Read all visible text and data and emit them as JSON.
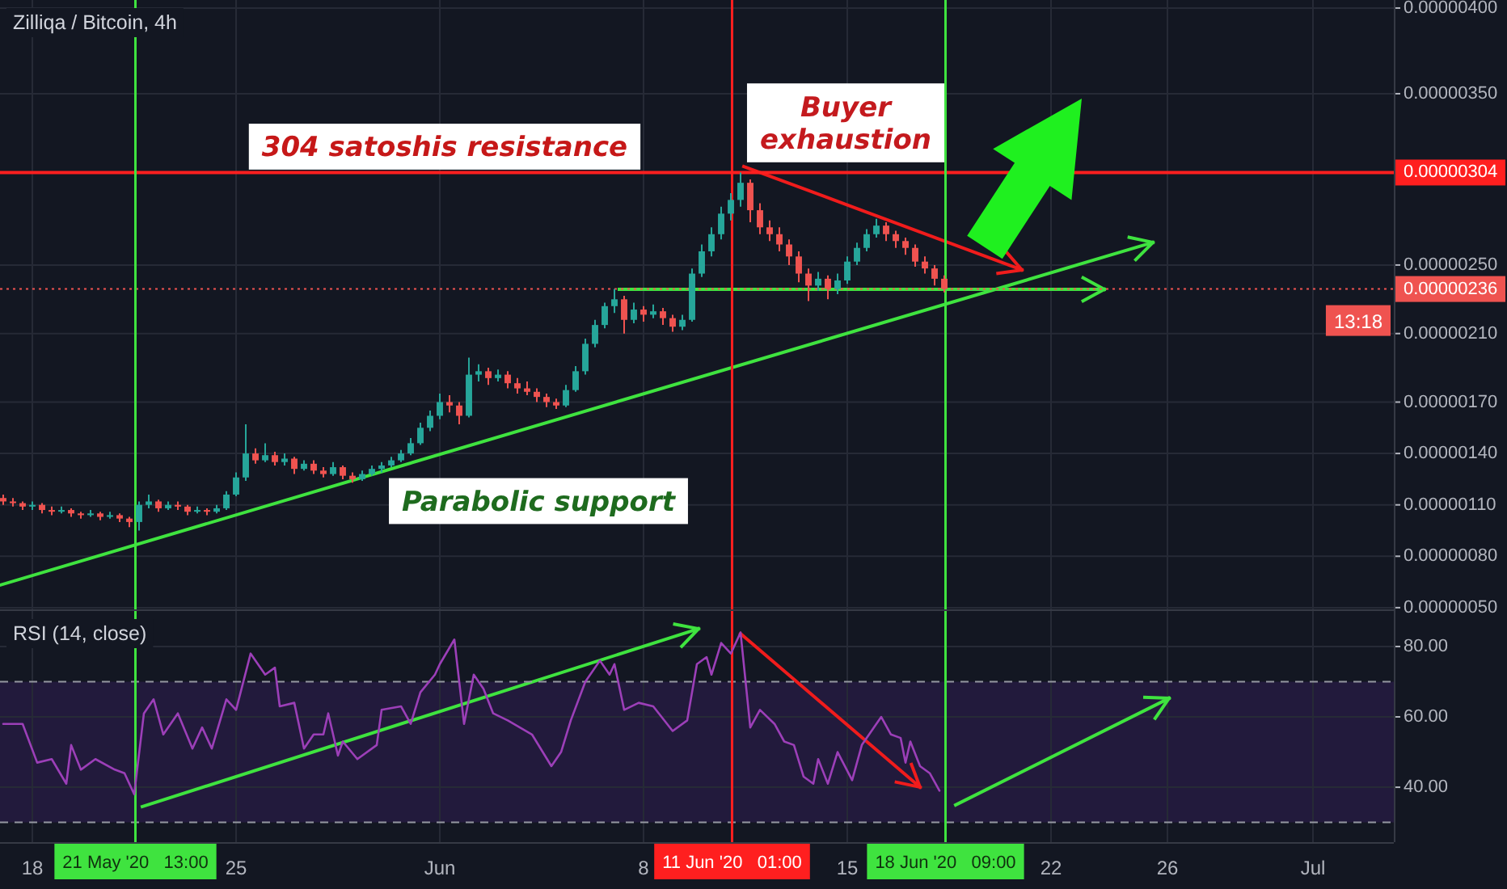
{
  "chart_data": [
    {
      "type": "candlestick",
      "title": "Zilliqa / Bitcoin, 4h",
      "x": [
        "2020-05-17T00:00",
        "2020-05-17T08:00",
        "2020-05-17T16:00",
        "2020-05-18T00:00",
        "2020-05-18T08:00",
        "2020-05-18T16:00",
        "2020-05-19T00:00",
        "2020-05-19T08:00",
        "2020-05-19T16:00",
        "2020-05-20T00:00",
        "2020-05-20T08:00",
        "2020-05-20T16:00",
        "2020-05-21T00:00",
        "2020-05-21T08:00",
        "2020-05-21T16:00",
        "2020-05-22T00:00",
        "2020-05-22T08:00",
        "2020-05-22T16:00",
        "2020-05-23T00:00",
        "2020-05-23T08:00",
        "2020-05-23T16:00",
        "2020-05-24T00:00",
        "2020-05-24T08:00",
        "2020-05-24T16:00",
        "2020-05-25T00:00",
        "2020-05-25T08:00",
        "2020-05-25T16:00",
        "2020-05-26T00:00",
        "2020-05-26T08:00",
        "2020-05-26T16:00",
        "2020-05-27T00:00",
        "2020-05-27T08:00",
        "2020-05-27T16:00",
        "2020-05-28T00:00",
        "2020-05-28T08:00",
        "2020-05-28T16:00",
        "2020-05-29T00:00",
        "2020-05-29T08:00",
        "2020-05-29T16:00",
        "2020-05-30T00:00",
        "2020-05-30T08:00",
        "2020-05-30T16:00",
        "2020-05-31T00:00",
        "2020-05-31T08:00",
        "2020-05-31T16:00",
        "2020-06-01T00:00",
        "2020-06-01T08:00",
        "2020-06-01T16:00",
        "2020-06-02T00:00",
        "2020-06-02T08:00",
        "2020-06-02T16:00",
        "2020-06-03T00:00",
        "2020-06-03T08:00",
        "2020-06-03T16:00",
        "2020-06-04T00:00",
        "2020-06-04T08:00",
        "2020-06-04T16:00",
        "2020-06-05T00:00",
        "2020-06-05T08:00",
        "2020-06-05T16:00",
        "2020-06-06T00:00",
        "2020-06-06T08:00",
        "2020-06-06T16:00",
        "2020-06-07T00:00",
        "2020-06-07T08:00",
        "2020-06-07T16:00",
        "2020-06-08T00:00",
        "2020-06-08T08:00",
        "2020-06-08T16:00",
        "2020-06-09T00:00",
        "2020-06-09T08:00",
        "2020-06-09T16:00",
        "2020-06-10T00:00",
        "2020-06-10T08:00",
        "2020-06-10T16:00",
        "2020-06-11T00:00",
        "2020-06-11T08:00",
        "2020-06-11T16:00",
        "2020-06-12T00:00",
        "2020-06-12T08:00",
        "2020-06-12T16:00",
        "2020-06-13T00:00",
        "2020-06-13T08:00",
        "2020-06-13T16:00",
        "2020-06-14T00:00",
        "2020-06-14T08:00",
        "2020-06-14T16:00",
        "2020-06-15T00:00",
        "2020-06-15T08:00",
        "2020-06-15T16:00",
        "2020-06-16T00:00",
        "2020-06-16T08:00",
        "2020-06-16T16:00",
        "2020-06-17T00:00",
        "2020-06-17T08:00",
        "2020-06-17T16:00",
        "2020-06-18T00:00",
        "2020-06-18T08:00"
      ],
      "ohlc": [
        [
          1.14e-06,
          1.16e-06,
          1.1e-06,
          1.12e-06
        ],
        [
          1.12e-06,
          1.14e-06,
          1.09e-06,
          1.11e-06
        ],
        [
          1.11e-06,
          1.12e-06,
          1.07e-06,
          1.09e-06
        ],
        [
          1.09e-06,
          1.12e-06,
          1.07e-06,
          1.1e-06
        ],
        [
          1.1e-06,
          1.11e-06,
          1.05e-06,
          1.07e-06
        ],
        [
          1.07e-06,
          1.09e-06,
          1.04e-06,
          1.06e-06
        ],
        [
          1.06e-06,
          1.09e-06,
          1.05e-06,
          1.07e-06
        ],
        [
          1.07e-06,
          1.08e-06,
          1.03e-06,
          1.05e-06
        ],
        [
          1.05e-06,
          1.06e-06,
          1.02e-06,
          1.04e-06
        ],
        [
          1.04e-06,
          1.07e-06,
          1.03e-06,
          1.05e-06
        ],
        [
          1.05e-06,
          1.06e-06,
          1.01e-06,
          1.03e-06
        ],
        [
          1.03e-06,
          1.06e-06,
          1.02e-06,
          1.04e-06
        ],
        [
          1.04e-06,
          1.05e-06,
          1e-06,
          1.02e-06
        ],
        [
          1.02e-06,
          1.03e-06,
          9.7e-07,
          1e-06
        ],
        [
          1e-06,
          1.12e-06,
          9.5e-07,
          1.1e-06
        ],
        [
          1.1e-06,
          1.16e-06,
          1.08e-06,
          1.12e-06
        ],
        [
          1.12e-06,
          1.13e-06,
          1.06e-06,
          1.08e-06
        ],
        [
          1.08e-06,
          1.12e-06,
          1.07e-06,
          1.1e-06
        ],
        [
          1.1e-06,
          1.12e-06,
          1.07e-06,
          1.09e-06
        ],
        [
          1.09e-06,
          1.1e-06,
          1.04e-06,
          1.06e-06
        ],
        [
          1.06e-06,
          1.09e-06,
          1.05e-06,
          1.07e-06
        ],
        [
          1.07e-06,
          1.08e-06,
          1.04e-06,
          1.06e-06
        ],
        [
          1.06e-06,
          1.1e-06,
          1.05e-06,
          1.08e-06
        ],
        [
          1.08e-06,
          1.18e-06,
          1.07e-06,
          1.16e-06
        ],
        [
          1.16e-06,
          1.29e-06,
          1.15e-06,
          1.26e-06
        ],
        [
          1.26e-06,
          1.57e-06,
          1.24e-06,
          1.4e-06
        ],
        [
          1.4e-06,
          1.43e-06,
          1.34e-06,
          1.36e-06
        ],
        [
          1.36e-06,
          1.46e-06,
          1.35e-06,
          1.39e-06
        ],
        [
          1.39e-06,
          1.41e-06,
          1.33e-06,
          1.35e-06
        ],
        [
          1.35e-06,
          1.4e-06,
          1.33e-06,
          1.37e-06
        ],
        [
          1.37e-06,
          1.38e-06,
          1.28e-06,
          1.31e-06
        ],
        [
          1.31e-06,
          1.36e-06,
          1.3e-06,
          1.34e-06
        ],
        [
          1.34e-06,
          1.36e-06,
          1.28e-06,
          1.3e-06
        ],
        [
          1.3e-06,
          1.32e-06,
          1.26e-06,
          1.28e-06
        ],
        [
          1.28e-06,
          1.35e-06,
          1.27e-06,
          1.32e-06
        ],
        [
          1.32e-06,
          1.33e-06,
          1.25e-06,
          1.27e-06
        ],
        [
          1.27e-06,
          1.29e-06,
          1.23e-06,
          1.25e-06
        ],
        [
          1.25e-06,
          1.3e-06,
          1.24e-06,
          1.28e-06
        ],
        [
          1.28e-06,
          1.33e-06,
          1.27e-06,
          1.31e-06
        ],
        [
          1.31e-06,
          1.35e-06,
          1.29e-06,
          1.33e-06
        ],
        [
          1.33e-06,
          1.38e-06,
          1.32e-06,
          1.36e-06
        ],
        [
          1.36e-06,
          1.42e-06,
          1.35e-06,
          1.4e-06
        ],
        [
          1.4e-06,
          1.49e-06,
          1.39e-06,
          1.46e-06
        ],
        [
          1.46e-06,
          1.58e-06,
          1.45e-06,
          1.55e-06
        ],
        [
          1.55e-06,
          1.65e-06,
          1.53e-06,
          1.62e-06
        ],
        [
          1.62e-06,
          1.75e-06,
          1.6e-06,
          1.7e-06
        ],
        [
          1.7e-06,
          1.74e-06,
          1.64e-06,
          1.68e-06
        ],
        [
          1.68e-06,
          1.7e-06,
          1.57e-06,
          1.62e-06
        ],
        [
          1.62e-06,
          1.96e-06,
          1.61e-06,
          1.86e-06
        ],
        [
          1.86e-06,
          1.92e-06,
          1.82e-06,
          1.88e-06
        ],
        [
          1.88e-06,
          1.9e-06,
          1.8e-06,
          1.84e-06
        ],
        [
          1.84e-06,
          1.89e-06,
          1.82e-06,
          1.86e-06
        ],
        [
          1.86e-06,
          1.88e-06,
          1.78e-06,
          1.81e-06
        ],
        [
          1.81e-06,
          1.84e-06,
          1.75e-06,
          1.78e-06
        ],
        [
          1.78e-06,
          1.82e-06,
          1.74e-06,
          1.76e-06
        ],
        [
          1.76e-06,
          1.78e-06,
          1.7e-06,
          1.73e-06
        ],
        [
          1.73e-06,
          1.75e-06,
          1.67e-06,
          1.7e-06
        ],
        [
          1.7e-06,
          1.72e-06,
          1.66e-06,
          1.68e-06
        ],
        [
          1.68e-06,
          1.8e-06,
          1.67e-06,
          1.77e-06
        ],
        [
          1.77e-06,
          1.91e-06,
          1.76e-06,
          1.88e-06
        ],
        [
          1.88e-06,
          2.07e-06,
          1.86e-06,
          2.04e-06
        ],
        [
          2.04e-06,
          2.18e-06,
          2.02e-06,
          2.15e-06
        ],
        [
          2.15e-06,
          2.28e-06,
          2.13e-06,
          2.26e-06
        ],
        [
          2.26e-06,
          2.36e-06,
          2.22e-06,
          2.3e-06
        ],
        [
          2.3e-06,
          2.32e-06,
          2.1e-06,
          2.18e-06
        ],
        [
          2.18e-06,
          2.28e-06,
          2.16e-06,
          2.24e-06
        ],
        [
          2.24e-06,
          2.26e-06,
          2.17e-06,
          2.21e-06
        ],
        [
          2.21e-06,
          2.27e-06,
          2.19e-06,
          2.23e-06
        ],
        [
          2.23e-06,
          2.25e-06,
          2.15e-06,
          2.19e-06
        ],
        [
          2.19e-06,
          2.21e-06,
          2.11e-06,
          2.14e-06
        ],
        [
          2.14e-06,
          2.21e-06,
          2.12e-06,
          2.18e-06
        ],
        [
          2.18e-06,
          2.48e-06,
          2.17e-06,
          2.45e-06
        ],
        [
          2.45e-06,
          2.62e-06,
          2.43e-06,
          2.58e-06
        ],
        [
          2.58e-06,
          2.72e-06,
          2.55e-06,
          2.68e-06
        ],
        [
          2.68e-06,
          2.84e-06,
          2.65e-06,
          2.8e-06
        ],
        [
          2.8e-06,
          2.92e-06,
          2.76e-06,
          2.88e-06
        ],
        [
          2.88e-06,
          3.04e-06,
          2.84e-06,
          2.98e-06
        ],
        [
          2.98e-06,
          3e-06,
          2.75e-06,
          2.82e-06
        ],
        [
          2.82e-06,
          2.86e-06,
          2.68e-06,
          2.72e-06
        ],
        [
          2.72e-06,
          2.76e-06,
          2.64e-06,
          2.68e-06
        ],
        [
          2.68e-06,
          2.72e-06,
          2.58e-06,
          2.62e-06
        ],
        [
          2.62e-06,
          2.65e-06,
          2.5e-06,
          2.55e-06
        ],
        [
          2.55e-06,
          2.58e-06,
          2.4e-06,
          2.45e-06
        ],
        [
          2.45e-06,
          2.48e-06,
          2.29e-06,
          2.38e-06
        ],
        [
          2.38e-06,
          2.46e-06,
          2.35e-06,
          2.42e-06
        ],
        [
          2.42e-06,
          2.44e-06,
          2.3e-06,
          2.36e-06
        ],
        [
          2.36e-06,
          2.45e-06,
          2.33e-06,
          2.41e-06
        ],
        [
          2.41e-06,
          2.55e-06,
          2.39e-06,
          2.52e-06
        ],
        [
          2.52e-06,
          2.63e-06,
          2.5e-06,
          2.6e-06
        ],
        [
          2.6e-06,
          2.71e-06,
          2.58e-06,
          2.68e-06
        ],
        [
          2.68e-06,
          2.77e-06,
          2.66e-06,
          2.73e-06
        ],
        [
          2.73e-06,
          2.75e-06,
          2.64e-06,
          2.68e-06
        ],
        [
          2.68e-06,
          2.7e-06,
          2.6e-06,
          2.64e-06
        ],
        [
          2.64e-06,
          2.66e-06,
          2.56e-06,
          2.6e-06
        ],
        [
          2.6e-06,
          2.62e-06,
          2.49e-06,
          2.52e-06
        ],
        [
          2.52e-06,
          2.55e-06,
          2.45e-06,
          2.48e-06
        ],
        [
          2.48e-06,
          2.5e-06,
          2.38e-06,
          2.42e-06
        ],
        [
          2.42e-06,
          2.44e-06,
          2.34e-06,
          2.36e-06
        ]
      ],
      "colors": [
        "#ef5350",
        "#ef5350",
        "#ef5350",
        "#26a69a",
        "#ef5350",
        "#ef5350",
        "#26a69a",
        "#ef5350",
        "#ef5350",
        "#26a69a",
        "#ef5350",
        "#26a69a",
        "#ef5350",
        "#ef5350",
        "#26a69a",
        "#26a69a",
        "#ef5350",
        "#26a69a",
        "#ef5350",
        "#ef5350",
        "#26a69a",
        "#ef5350",
        "#26a69a",
        "#26a69a",
        "#26a69a",
        "#26a69a",
        "#ef5350",
        "#26a69a",
        "#ef5350",
        "#26a69a",
        "#ef5350",
        "#26a69a",
        "#ef5350",
        "#ef5350",
        "#26a69a",
        "#ef5350",
        "#ef5350",
        "#26a69a",
        "#26a69a",
        "#26a69a",
        "#26a69a",
        "#26a69a",
        "#26a69a",
        "#26a69a",
        "#26a69a",
        "#26a69a",
        "#ef5350",
        "#ef5350",
        "#26a69a",
        "#26a69a",
        "#ef5350",
        "#26a69a",
        "#ef5350",
        "#ef5350",
        "#ef5350",
        "#ef5350",
        "#ef5350",
        "#ef5350",
        "#26a69a",
        "#26a69a",
        "#26a69a",
        "#26a69a",
        "#26a69a",
        "#26a69a",
        "#ef5350",
        "#26a69a",
        "#ef5350",
        "#26a69a",
        "#ef5350",
        "#ef5350",
        "#26a69a",
        "#26a69a",
        "#26a69a",
        "#26a69a",
        "#26a69a",
        "#26a69a",
        "#26a69a",
        "#ef5350",
        "#ef5350",
        "#ef5350",
        "#ef5350",
        "#ef5350",
        "#ef5350",
        "#ef5350",
        "#26a69a",
        "#ef5350",
        "#26a69a",
        "#26a69a",
        "#26a69a",
        "#26a69a",
        "#26a69a",
        "#ef5350",
        "#ef5350",
        "#ef5350",
        "#ef5350",
        "#ef5350",
        "#ef5350",
        "#ef5350"
      ],
      "xlim": [
        "2020-05-16T21:20",
        "2020-07-03T18:40"
      ],
      "xticks": [
        {
          "value": "2020-05-18",
          "label": null
        },
        {
          "value": "2020-05-25",
          "label": null
        },
        {
          "value": "2020-06-01",
          "label": null
        },
        {
          "value": "2020-06-08",
          "label": null
        },
        {
          "value": "2020-06-15",
          "label": null
        },
        {
          "value": "2020-06-22",
          "label": null
        },
        {
          "value": "2020-06-26",
          "label": null
        },
        {
          "value": "2020-07-01",
          "label": null
        }
      ],
      "ylim": [
        4.9e-07,
        4.047e-06
      ],
      "yticks": [
        {
          "value": 4e-06,
          "label": "0.00000400"
        },
        {
          "value": 3.5e-06,
          "label": "0.00000350"
        },
        {
          "value": 3.04e-06,
          "label": "0.00000304"
        },
        {
          "value": 2.5e-06,
          "label": "0.00000250"
        },
        {
          "value": 2.36e-06,
          "label": "0.00000236"
        },
        {
          "value": 2.1e-06,
          "label": "0.00000210"
        },
        {
          "value": 1.7e-06,
          "label": "0.00000170"
        },
        {
          "value": 1.4e-06,
          "label": "0.00000140"
        },
        {
          "value": 1.1e-06,
          "label": "0.00000110"
        },
        {
          "value": 8e-07,
          "label": "0.00000080"
        },
        {
          "value": 5e-07,
          "label": "0.00000050"
        }
      ],
      "grid": true,
      "tick_labels": "y",
      "ref_lines": [
        {
          "axis": "x",
          "value": "2020-05-21T13:00",
          "color": "#3fe33f"
        },
        {
          "axis": "x",
          "value": "2020-06-11T01:00",
          "color": "#ff1f1f"
        },
        {
          "axis": "x",
          "value": "2020-06-18T09:00",
          "color": "#3fe33f"
        },
        {
          "axis": "y",
          "value": 3.04e-06,
          "label": "304 satoshis resistance",
          "color": "#ff1f1f"
        },
        {
          "axis": "y",
          "value": 2.36e-06,
          "color": "#ef5350",
          "line_style": "dotted"
        }
      ],
      "annotations": [
        "Buyer exhaustion",
        "Parabolic support",
        "13:18"
      ]
    },
    {
      "type": "line",
      "title": "RSI (14, close)",
      "series": [
        {
          "color": "#9c3fb8",
          "x": [
            "2020-05-17T00:00",
            "2020-05-17T16:00",
            "2020-05-18T04:00",
            "2020-05-18T16:00",
            "2020-05-19T04:00",
            "2020-05-19T08:00",
            "2020-05-19T16:00",
            "2020-05-20T04:00",
            "2020-05-20T20:00",
            "2020-05-21T04:00",
            "2020-05-21T12:00",
            "2020-05-21T20:00",
            "2020-05-22T04:00",
            "2020-05-22T12:00",
            "2020-05-23T00:00",
            "2020-05-23T12:00",
            "2020-05-23T20:00",
            "2020-05-24T04:00",
            "2020-05-24T16:00",
            "2020-05-25T00:00",
            "2020-05-25T12:00",
            "2020-05-26T00:00",
            "2020-05-26T08:00",
            "2020-05-26T12:00",
            "2020-05-27T00:00",
            "2020-05-27T08:00",
            "2020-05-27T16:00",
            "2020-05-28T00:00",
            "2020-05-28T04:00",
            "2020-05-28T12:00",
            "2020-05-28T16:00",
            "2020-05-29T04:00",
            "2020-05-29T20:00",
            "2020-05-30T00:00",
            "2020-05-30T16:00",
            "2020-05-31T00:00",
            "2020-05-31T08:00",
            "2020-05-31T20:00",
            "2020-06-01T00:00",
            "2020-06-01T12:00",
            "2020-06-01T20:00",
            "2020-06-02T04:00",
            "2020-06-02T12:00",
            "2020-06-02T20:00",
            "2020-06-03T08:00",
            "2020-06-04T04:00",
            "2020-06-04T20:00",
            "2020-06-05T04:00",
            "2020-06-05T12:00",
            "2020-06-06T00:00",
            "2020-06-06T12:00",
            "2020-06-06T20:00",
            "2020-06-07T00:00",
            "2020-06-07T08:00",
            "2020-06-07T20:00",
            "2020-06-08T08:00",
            "2020-06-09T00:00",
            "2020-06-09T12:00",
            "2020-06-09T20:00",
            "2020-06-10T04:00",
            "2020-06-10T08:00",
            "2020-06-10T16:00",
            "2020-06-11T00:00",
            "2020-06-11T08:00",
            "2020-06-11T16:00",
            "2020-06-12T00:00",
            "2020-06-12T12:00",
            "2020-06-12T20:00",
            "2020-06-13T04:00",
            "2020-06-13T12:00",
            "2020-06-13T20:00",
            "2020-06-14T00:00",
            "2020-06-14T08:00",
            "2020-06-14T16:00",
            "2020-06-15T04:00",
            "2020-06-15T12:00",
            "2020-06-16T04:00",
            "2020-06-16T12:00",
            "2020-06-16T20:00",
            "2020-06-17T00:00",
            "2020-06-17T04:00",
            "2020-06-17T12:00",
            "2020-06-17T20:00",
            "2020-06-18T04:00"
          ],
          "values": [
            58,
            58,
            47,
            48,
            41,
            52,
            45,
            48,
            45,
            44,
            38,
            61,
            65,
            55,
            61,
            51,
            57,
            51,
            65,
            62,
            78,
            72,
            74,
            63,
            64,
            51,
            55,
            55,
            61,
            49,
            53,
            48,
            52,
            62,
            63,
            58,
            67,
            72,
            75,
            82,
            58,
            72,
            68,
            61,
            59,
            55,
            46,
            50,
            59,
            70,
            76,
            72,
            75,
            62,
            64,
            63,
            56,
            59,
            75,
            77,
            72,
            81,
            78,
            84,
            57,
            62,
            58,
            53,
            52,
            43,
            41,
            48,
            41,
            50,
            42,
            52,
            60,
            55,
            54,
            47,
            53,
            46,
            44,
            39
          ]
        }
      ],
      "xlim": [
        "2020-05-16T21:20",
        "2020-07-03T18:40"
      ],
      "xticks": [
        {
          "value": "2020-05-18",
          "label": "18"
        },
        {
          "value": "2020-05-25",
          "label": "25"
        },
        {
          "value": "2020-06-01",
          "label": "Jun"
        },
        {
          "value": "2020-06-08",
          "label": "8"
        },
        {
          "value": "2020-06-15",
          "label": "15"
        },
        {
          "value": "2020-06-22",
          "label": "22"
        },
        {
          "value": "2020-06-26",
          "label": "26"
        },
        {
          "value": "2020-07-01",
          "label": "Jul"
        }
      ],
      "ylim": [
        24.4,
        90.1
      ],
      "yticks": [
        {
          "value": 80,
          "label": "80.00"
        },
        {
          "value": 60,
          "label": "60.00"
        },
        {
          "value": 40,
          "label": "40.00"
        }
      ],
      "grid": true,
      "bands": [
        {
          "axis": "y",
          "from": 30,
          "to": 70,
          "color": "#221a3c"
        }
      ],
      "ref_lines": [
        {
          "axis": "y",
          "value": 70,
          "color": "#9598a1",
          "line_style": "dashed"
        },
        {
          "axis": "y",
          "value": 30,
          "color": "#9598a1",
          "line_style": "dashed"
        },
        {
          "axis": "x",
          "value": "2020-05-21T13:00",
          "label": "21 May '20   13:00",
          "color": "#3fe33f"
        },
        {
          "axis": "x",
          "value": "2020-06-11T01:00",
          "label": "11 Jun '20   01:00",
          "color": "#ff1f1f"
        },
        {
          "axis": "x",
          "value": "2020-06-18T09:00",
          "label": "18 Jun '20   09:00",
          "color": "#3fe33f"
        }
      ]
    }
  ]
}
